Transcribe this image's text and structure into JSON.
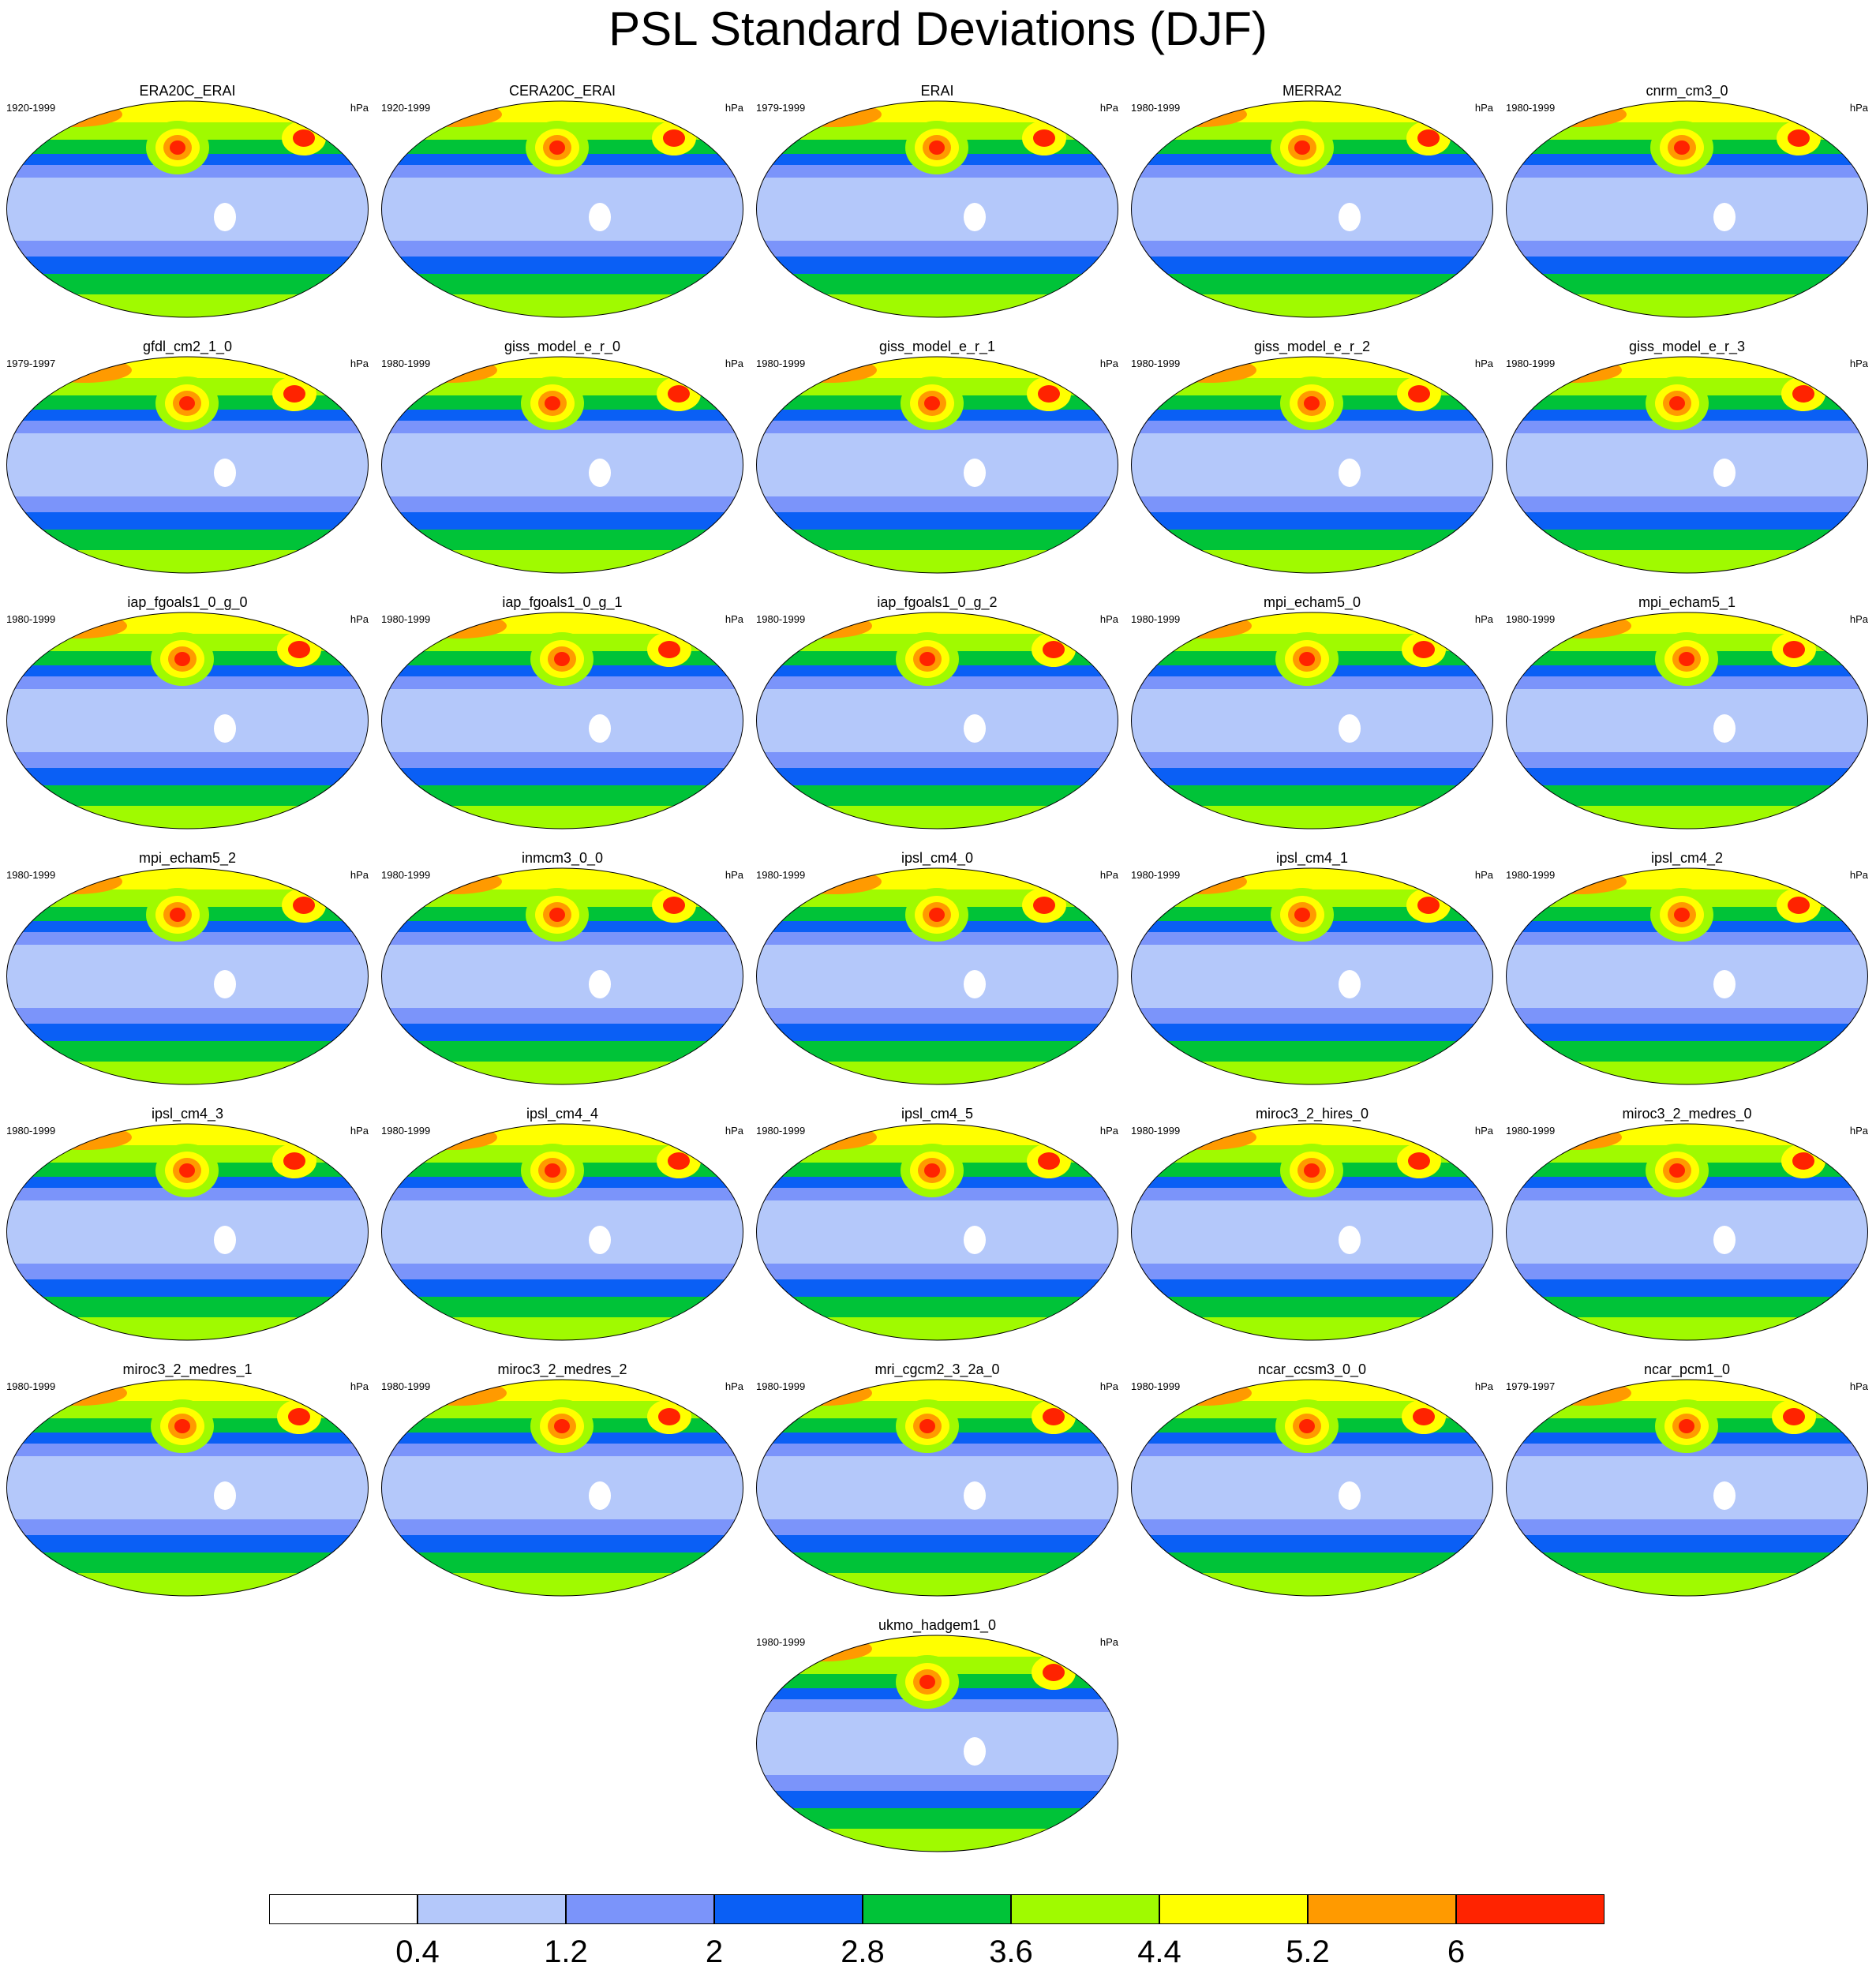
{
  "title": "PSL Standard Deviations (DJF)",
  "units_label": "hPa",
  "colorbar": {
    "colors": [
      "#ffffff",
      "#b4c8fa",
      "#7b94fa",
      "#0a5ff5",
      "#00c338",
      "#a0fa00",
      "#ffff00",
      "#ff9a00",
      "#ff2300"
    ],
    "tick_labels": [
      "0.4",
      "1.2",
      "2",
      "2.8",
      "3.6",
      "4.4",
      "5.2",
      "6"
    ]
  },
  "panels": [
    {
      "name": "ERA20C_ERAI",
      "years": "1920-1999"
    },
    {
      "name": "CERA20C_ERAI",
      "years": "1920-1999"
    },
    {
      "name": "ERAI",
      "years": "1979-1999"
    },
    {
      "name": "MERRA2",
      "years": "1980-1999"
    },
    {
      "name": "cnrm_cm3_0",
      "years": "1980-1999"
    },
    {
      "name": "gfdl_cm2_1_0",
      "years": "1979-1997"
    },
    {
      "name": "giss_model_e_r_0",
      "years": "1980-1999"
    },
    {
      "name": "giss_model_e_r_1",
      "years": "1980-1999"
    },
    {
      "name": "giss_model_e_r_2",
      "years": "1980-1999"
    },
    {
      "name": "giss_model_e_r_3",
      "years": "1980-1999"
    },
    {
      "name": "iap_fgoals1_0_g_0",
      "years": "1980-1999"
    },
    {
      "name": "iap_fgoals1_0_g_1",
      "years": "1980-1999"
    },
    {
      "name": "iap_fgoals1_0_g_2",
      "years": "1980-1999"
    },
    {
      "name": "mpi_echam5_0",
      "years": "1980-1999"
    },
    {
      "name": "mpi_echam5_1",
      "years": "1980-1999"
    },
    {
      "name": "mpi_echam5_2",
      "years": "1980-1999"
    },
    {
      "name": "inmcm3_0_0",
      "years": "1980-1999"
    },
    {
      "name": "ipsl_cm4_0",
      "years": "1980-1999"
    },
    {
      "name": "ipsl_cm4_1",
      "years": "1980-1999"
    },
    {
      "name": "ipsl_cm4_2",
      "years": "1980-1999"
    },
    {
      "name": "ipsl_cm4_3",
      "years": "1980-1999"
    },
    {
      "name": "ipsl_cm4_4",
      "years": "1980-1999"
    },
    {
      "name": "ipsl_cm4_5",
      "years": "1980-1999"
    },
    {
      "name": "miroc3_2_hires_0",
      "years": "1980-1999"
    },
    {
      "name": "miroc3_2_medres_0",
      "years": "1980-1999"
    },
    {
      "name": "miroc3_2_medres_1",
      "years": "1980-1999"
    },
    {
      "name": "miroc3_2_medres_2",
      "years": "1980-1999"
    },
    {
      "name": "mri_cgcm2_3_2a_0",
      "years": "1980-1999"
    },
    {
      "name": "ncar_ccsm3_0_0",
      "years": "1980-1999"
    },
    {
      "name": "ncar_pcm1_0",
      "years": "1979-1997"
    },
    {
      "name": "ukmo_hadgem1_0",
      "years": "1980-1999"
    }
  ]
}
